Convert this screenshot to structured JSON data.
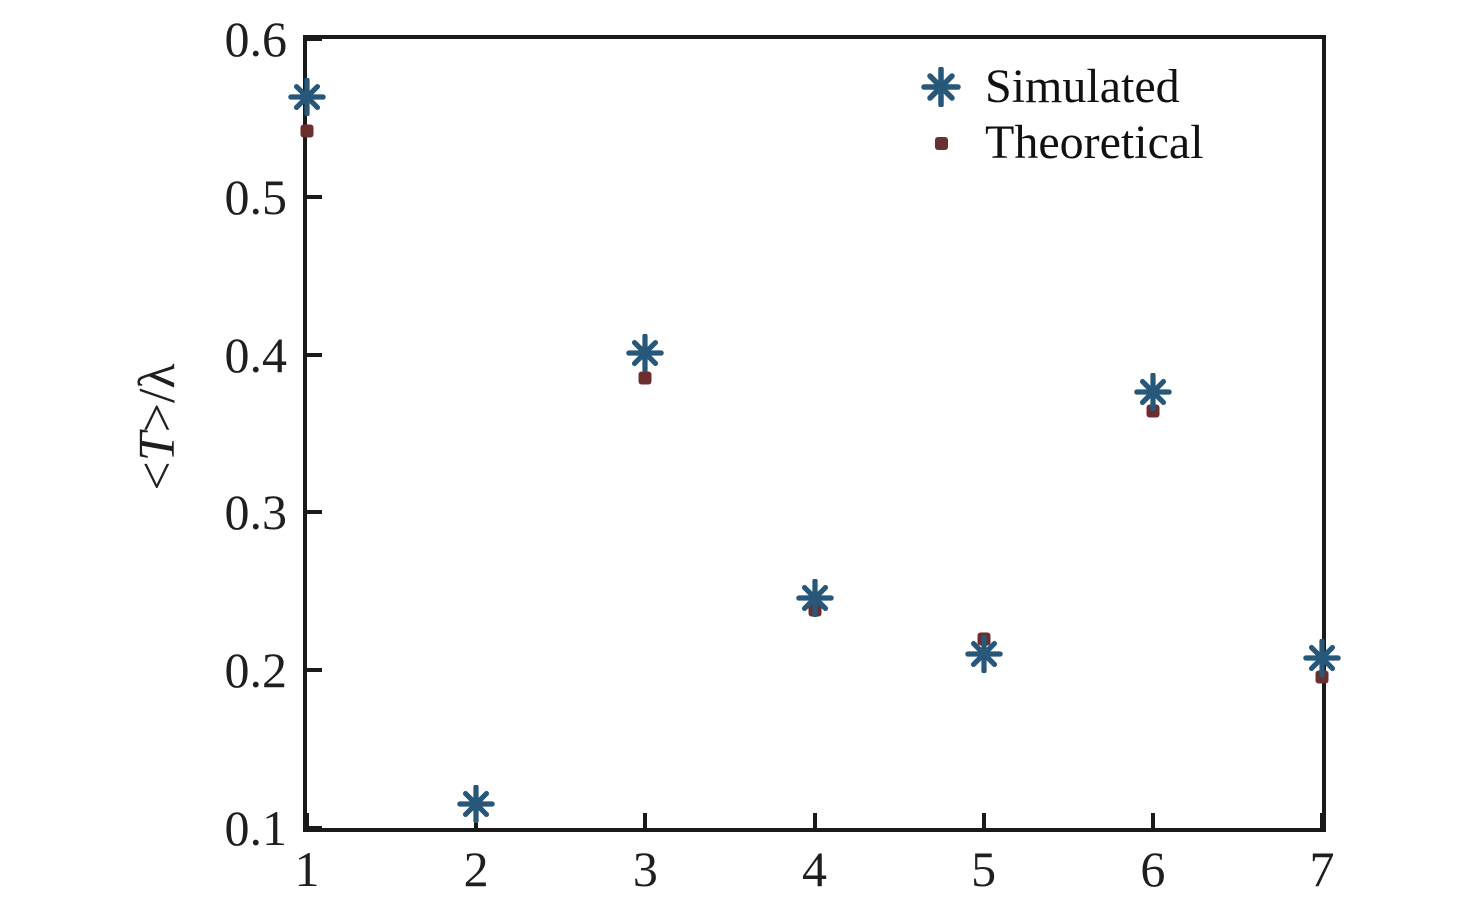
{
  "figure": {
    "background": "#ffffff",
    "axis_color": "#1a1a1a"
  },
  "chart_data": {
    "type": "scatter",
    "title": "",
    "xlabel": "",
    "ylabel": "<T>/λ",
    "ylabel_parts": {
      "pre": "<",
      "T": "T",
      "mid": ">/",
      "lambda": "λ"
    },
    "xlim": [
      1,
      7
    ],
    "ylim": [
      0.1,
      0.6
    ],
    "xticks": [
      1,
      2,
      3,
      4,
      5,
      6,
      7
    ],
    "xtick_labels": [
      "1",
      "2",
      "3",
      "4",
      "5",
      "6",
      "7"
    ],
    "yticks": [
      0.1,
      0.2,
      0.3,
      0.4,
      0.5,
      0.6
    ],
    "ytick_labels": [
      "0.1",
      "0.2",
      "0.3",
      "0.4",
      "0.5",
      "0.6"
    ],
    "grid": false,
    "legend_position": "top-right",
    "x": [
      1,
      2,
      3,
      4,
      5,
      6,
      7
    ],
    "series": [
      {
        "name": "Simulated",
        "marker": "asterisk",
        "color": "#27587a",
        "values": [
          0.563,
          0.115,
          0.401,
          0.246,
          0.21,
          0.376,
          0.208
        ]
      },
      {
        "name": "Theoretical",
        "marker": "dot",
        "color": "#6b2f2f",
        "values": [
          0.542,
          0.115,
          0.385,
          0.238,
          0.22,
          0.364,
          0.196
        ]
      }
    ]
  }
}
